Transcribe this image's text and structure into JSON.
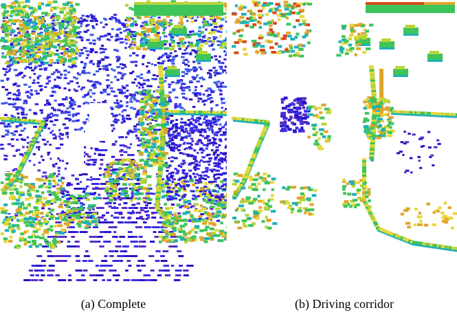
{
  "figure": {
    "panels": [
      {
        "id": "a",
        "caption": "(a) Complete",
        "content": "complete-voxel-map"
      },
      {
        "id": "b",
        "caption": "(b) Driving corridor",
        "content": "driving-corridor-voxel-map"
      }
    ],
    "colors": {
      "ground_deep": "#2a14c8",
      "ground_mid": "#3a2ee6",
      "ground_light": "#3f5be8",
      "purple": "#5a2cc4",
      "teal": "#1fb0b8",
      "green": "#3fc45a",
      "yellowgreen": "#b7d43a",
      "yellow": "#e6d83a",
      "orange": "#e0a52c",
      "red": "#d64a1a"
    }
  }
}
